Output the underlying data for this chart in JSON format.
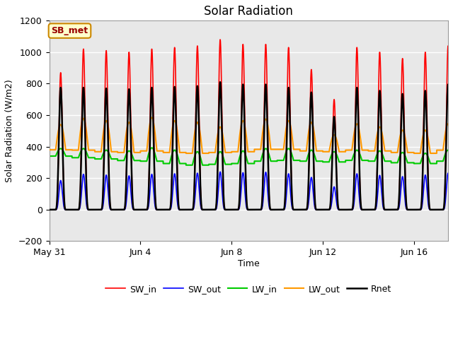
{
  "title": "Solar Radiation",
  "xlabel": "Time",
  "ylabel": "Solar Radiation (W/m2)",
  "ylim": [
    -200,
    1200
  ],
  "yticks": [
    -200,
    0,
    200,
    400,
    600,
    800,
    1000,
    1200
  ],
  "background_color": "#ffffff",
  "plot_bg_color": "#e8e8e8",
  "grid_color": "#ffffff",
  "annotation_text": "SB_met",
  "annotation_bg": "#ffffcc",
  "annotation_border": "#cc8800",
  "annotation_text_color": "#990000",
  "line_colors": {
    "SW_in": "#ff0000",
    "SW_out": "#0000ff",
    "LW_in": "#00cc00",
    "LW_out": "#ff9900",
    "Rnet": "#000000"
  },
  "line_widths": {
    "SW_in": 1.2,
    "SW_out": 1.2,
    "LW_in": 1.5,
    "LW_out": 1.5,
    "Rnet": 1.8
  },
  "x_tick_labels": [
    "May 31",
    "Jun 4",
    "Jun 8",
    "Jun 12",
    "Jun 16"
  ],
  "x_tick_positions": [
    0,
    4,
    8,
    12,
    16
  ],
  "n_days": 18,
  "points_per_day": 288,
  "SW_in_peak": [
    870,
    1020,
    1010,
    1000,
    1020,
    1030,
    1040,
    1080,
    1050,
    1050,
    1030,
    890,
    700,
    1030,
    1000,
    960,
    1000,
    1040
  ],
  "SW_out_peak": [
    185,
    225,
    220,
    215,
    225,
    228,
    232,
    240,
    235,
    238,
    228,
    205,
    145,
    228,
    218,
    210,
    220,
    232
  ],
  "LW_in_base": [
    340,
    330,
    322,
    312,
    308,
    293,
    283,
    288,
    293,
    308,
    313,
    308,
    303,
    313,
    308,
    298,
    293,
    308
  ],
  "LW_in_peak": [
    388,
    388,
    378,
    373,
    393,
    378,
    368,
    368,
    373,
    388,
    388,
    378,
    368,
    378,
    373,
    363,
    358,
    378
  ],
  "LW_out_base": [
    380,
    378,
    368,
    363,
    373,
    363,
    358,
    363,
    368,
    383,
    383,
    373,
    368,
    378,
    373,
    363,
    358,
    378
  ],
  "LW_out_peak": [
    540,
    580,
    565,
    555,
    585,
    565,
    555,
    525,
    565,
    575,
    565,
    555,
    475,
    545,
    525,
    505,
    505,
    545
  ],
  "Rnet_peak": [
    775,
    775,
    770,
    765,
    775,
    780,
    785,
    810,
    795,
    795,
    775,
    745,
    590,
    775,
    755,
    735,
    755,
    795
  ],
  "SW_sharpness": 4.0,
  "Rnet_sharpness": 3.5,
  "SW_day_start": 0.27,
  "SW_day_end": 0.73,
  "LW_day_start": 0.28,
  "LW_day_end": 0.72
}
